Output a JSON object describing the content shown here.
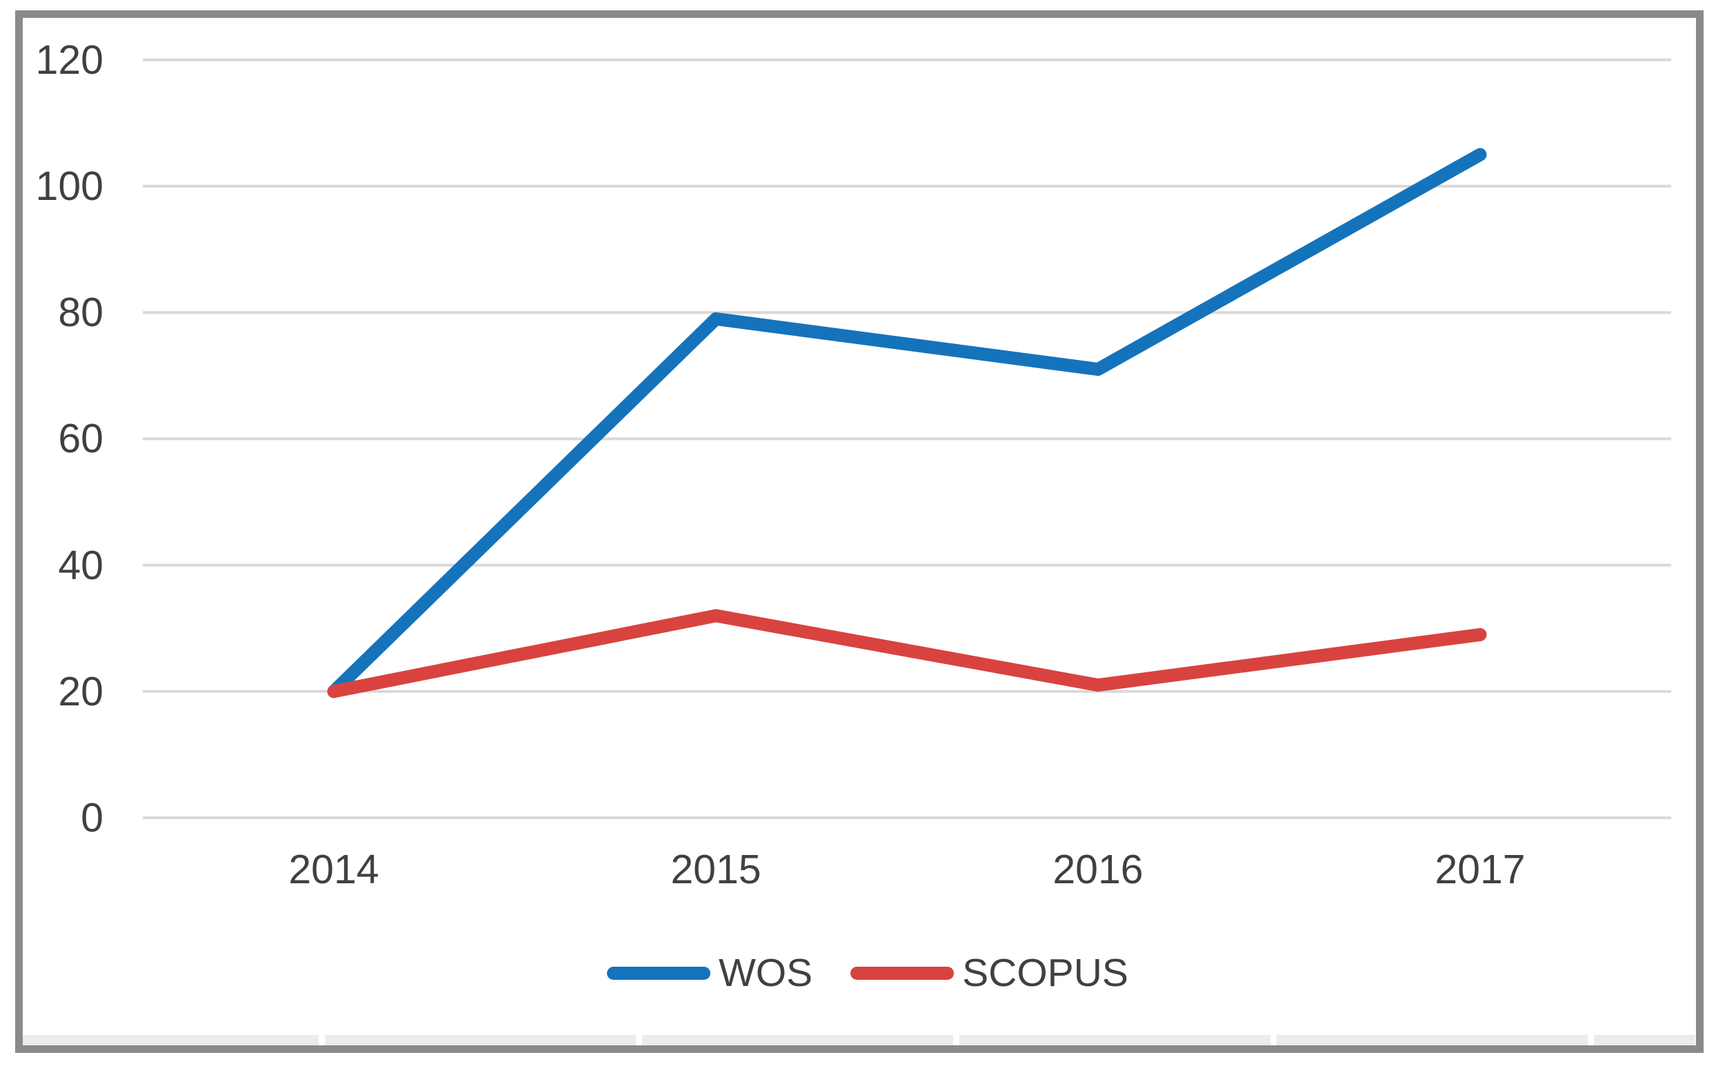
{
  "chart_data": {
    "type": "line",
    "title": "",
    "xlabel": "",
    "ylabel": "",
    "categories": [
      "2014",
      "2015",
      "2016",
      "2017"
    ],
    "series": [
      {
        "name": "WOS",
        "color": "#1573BC",
        "values": [
          20,
          79,
          71,
          105
        ]
      },
      {
        "name": "SCOPUS",
        "color": "#D84340",
        "values": [
          20,
          32,
          21,
          29
        ]
      }
    ],
    "ylim": [
      0,
      120
    ],
    "ytick_step": 20,
    "yticks": [
      "0",
      "20",
      "40",
      "60",
      "80",
      "100",
      "120"
    ],
    "grid": true,
    "legend_position": "bottom-center"
  },
  "colors": {
    "wos_line": "#1573BC",
    "scopus_line": "#D84340",
    "gridline": "#D9D9D9",
    "axis_text": "#404040",
    "outer_border": "#8A8A8A"
  }
}
